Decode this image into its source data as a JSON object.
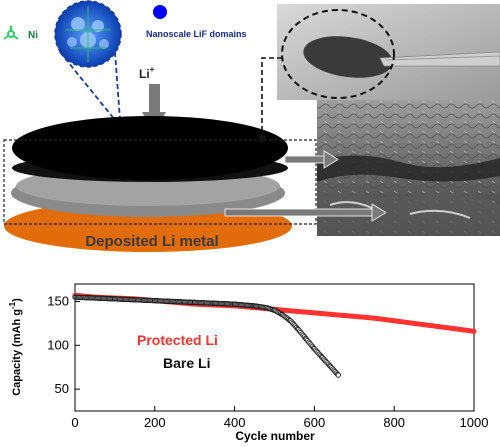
{
  "colors": {
    "protected": "#ff3333",
    "bare": "#1a1a1a",
    "disk_top": "#000000",
    "separator": "#8a8a8a",
    "li_disk": "#e36c0a",
    "ni_icon": "#33cc66",
    "lif_dot": "#0000ff",
    "cage_fill": "#1f5fd9",
    "sem_bg": "#6b6b6b",
    "photo_bg": "#bdbdbd"
  },
  "schematic": {
    "ni_label": "Ni",
    "lif_label": "Nanoscale LiF domains",
    "li_ion_base": "Li",
    "li_ion_sup": "+",
    "deposited_label": "Deposited Li metal",
    "icons": [
      "ni-lattice-icon",
      "lif-dot-icon",
      "down-arrow-icon",
      "right-arrow-icon"
    ]
  },
  "chart_data": {
    "type": "scatter",
    "xlabel": "Cycle number",
    "ylabel_base": "Capacity (mAh g",
    "ylabel_sup": "-1",
    "ylabel_end": ")",
    "xlim": [
      0,
      1000
    ],
    "ylim": [
      25,
      170
    ],
    "x_ticks": [
      0,
      200,
      400,
      600,
      800,
      1000
    ],
    "y_ticks": [
      50,
      100,
      150
    ],
    "grid": false,
    "series": [
      {
        "name": "Protected Li",
        "color_key": "protected",
        "points": [
          [
            0,
            157
          ],
          [
            50,
            155
          ],
          [
            100,
            154
          ],
          [
            150,
            153
          ],
          [
            200,
            151
          ],
          [
            250,
            149
          ],
          [
            300,
            147
          ],
          [
            350,
            146
          ],
          [
            400,
            145
          ],
          [
            450,
            143
          ],
          [
            500,
            141
          ],
          [
            550,
            139
          ],
          [
            600,
            137
          ],
          [
            650,
            135
          ],
          [
            700,
            133
          ],
          [
            750,
            131
          ],
          [
            800,
            128
          ],
          [
            850,
            125
          ],
          [
            900,
            122
          ],
          [
            950,
            119
          ],
          [
            1000,
            116
          ]
        ]
      },
      {
        "name": "Bare Li",
        "color_key": "bare",
        "points": [
          [
            0,
            155
          ],
          [
            100,
            153
          ],
          [
            200,
            151
          ],
          [
            300,
            149
          ],
          [
            350,
            148
          ],
          [
            400,
            147
          ],
          [
            450,
            145
          ],
          [
            480,
            143
          ],
          [
            500,
            140
          ],
          [
            520,
            135
          ],
          [
            540,
            128
          ],
          [
            560,
            118
          ],
          [
            580,
            107
          ],
          [
            600,
            96
          ],
          [
            620,
            86
          ],
          [
            640,
            76
          ],
          [
            660,
            66
          ]
        ]
      }
    ]
  }
}
